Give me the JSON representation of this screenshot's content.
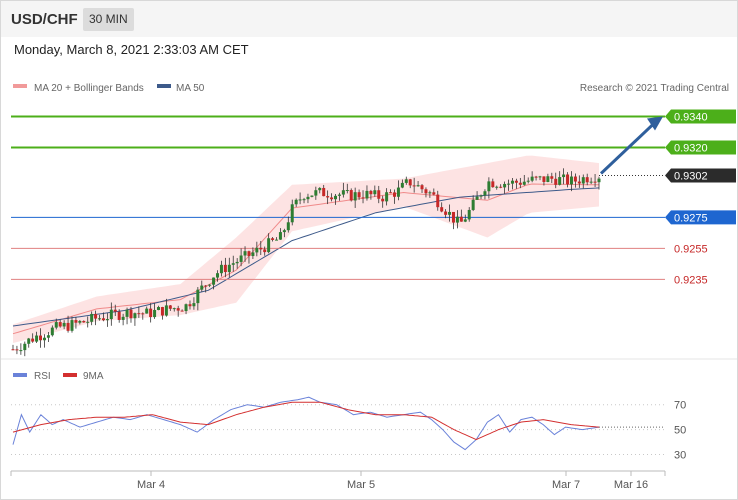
{
  "header": {
    "pair": "USD/CHF",
    "timeframe": "30 MIN"
  },
  "date_line": "Monday, March 8, 2021 2:33:03 AM CET",
  "legend": {
    "ma_bb": "MA 20 + Bollinger Bands",
    "ma50": "MA 50",
    "credit": "Research © 2021 Trading Central"
  },
  "rsi_legend": {
    "rsi": "RSI",
    "ma9": "9MA"
  },
  "colors": {
    "up": "#2e7d32",
    "down": "#c62828",
    "resistance": "#4caf1a",
    "support": "#1e66d0",
    "ma50": "#3d5a8a",
    "band": "#fddede",
    "rsi": "#6a82d9",
    "rsi_ma": "#d32f2f",
    "arrow": "#2f5f9c"
  },
  "chart_data": [
    {
      "type": "candlestick",
      "title": "USD/CHF",
      "timeframe": "30 MIN",
      "x_ticks": [
        "Mar 4",
        "Mar 5",
        "Mar 7",
        "Mar 16"
      ],
      "y_visible_range": [
        0.9185,
        0.935
      ],
      "last_price": 0.9302,
      "levels": [
        {
          "value": 0.934,
          "label": "0.9340",
          "kind": "resistance"
        },
        {
          "value": 0.932,
          "label": "0.9320",
          "kind": "resistance"
        },
        {
          "value": 0.9302,
          "label": "0.9302",
          "kind": "current"
        },
        {
          "value": 0.9275,
          "label": "0.9275",
          "kind": "pivot"
        },
        {
          "value": 0.9255,
          "label": "0.9255",
          "kind": "support"
        },
        {
          "value": 0.9235,
          "label": "0.9235",
          "kind": "support"
        }
      ],
      "close_path": [
        [
          0,
          0.919
        ],
        [
          8,
          0.9198
        ],
        [
          16,
          0.9204
        ],
        [
          22,
          0.9206
        ],
        [
          30,
          0.921
        ],
        [
          36,
          0.9212
        ],
        [
          42,
          0.9214
        ],
        [
          48,
          0.9213
        ],
        [
          56,
          0.9216
        ],
        [
          62,
          0.9218
        ],
        [
          68,
          0.923
        ],
        [
          72,
          0.9238
        ],
        [
          78,
          0.9245
        ],
        [
          84,
          0.925
        ],
        [
          90,
          0.9256
        ],
        [
          96,
          0.9262
        ],
        [
          100,
          0.928
        ],
        [
          104,
          0.929
        ],
        [
          112,
          0.9291
        ],
        [
          120,
          0.9289
        ],
        [
          126,
          0.929
        ],
        [
          132,
          0.9288
        ],
        [
          138,
          0.9292
        ],
        [
          142,
          0.9298
        ],
        [
          150,
          0.929
        ],
        [
          156,
          0.9278
        ],
        [
          160,
          0.927
        ],
        [
          164,
          0.928
        ],
        [
          170,
          0.9298
        ],
        [
          178,
          0.9297
        ],
        [
          186,
          0.9299
        ],
        [
          194,
          0.93
        ],
        [
          200,
          0.9298
        ],
        [
          206,
          0.9301
        ],
        [
          210,
          0.9302
        ]
      ],
      "ma50_path": [
        [
          0,
          0.9205
        ],
        [
          40,
          0.9215
        ],
        [
          70,
          0.9228
        ],
        [
          100,
          0.926
        ],
        [
          130,
          0.9278
        ],
        [
          160,
          0.9288
        ],
        [
          200,
          0.9293
        ],
        [
          210,
          0.9294
        ]
      ],
      "bb_upper": [
        [
          0,
          0.9206
        ],
        [
          30,
          0.9224
        ],
        [
          60,
          0.9232
        ],
        [
          80,
          0.9262
        ],
        [
          100,
          0.9296
        ],
        [
          140,
          0.93
        ],
        [
          170,
          0.931
        ],
        [
          185,
          0.9315
        ],
        [
          210,
          0.931
        ]
      ],
      "bb_lower": [
        [
          0,
          0.9194
        ],
        [
          30,
          0.9208
        ],
        [
          60,
          0.9212
        ],
        [
          80,
          0.922
        ],
        [
          100,
          0.9266
        ],
        [
          140,
          0.9282
        ],
        [
          170,
          0.9262
        ],
        [
          185,
          0.9278
        ],
        [
          210,
          0.9282
        ]
      ],
      "projection": {
        "from": 0.9302,
        "to": 0.934
      }
    },
    {
      "type": "line",
      "title": "RSI",
      "series": [
        {
          "name": "RSI"
        },
        {
          "name": "9MA"
        }
      ],
      "y_ticks": [
        "70",
        "50",
        "30"
      ],
      "ylim": [
        20,
        85
      ],
      "rsi_path": [
        [
          0,
          38
        ],
        [
          3,
          62
        ],
        [
          6,
          48
        ],
        [
          10,
          62
        ],
        [
          14,
          54
        ],
        [
          18,
          58
        ],
        [
          24,
          52
        ],
        [
          30,
          56
        ],
        [
          36,
          60
        ],
        [
          42,
          58
        ],
        [
          48,
          62
        ],
        [
          54,
          58
        ],
        [
          60,
          54
        ],
        [
          66,
          48
        ],
        [
          72,
          58
        ],
        [
          78,
          66
        ],
        [
          84,
          70
        ],
        [
          90,
          68
        ],
        [
          96,
          72
        ],
        [
          102,
          74
        ],
        [
          106,
          76
        ],
        [
          110,
          72
        ],
        [
          116,
          70
        ],
        [
          122,
          62
        ],
        [
          128,
          64
        ],
        [
          134,
          60
        ],
        [
          140,
          62
        ],
        [
          146,
          64
        ],
        [
          150,
          58
        ],
        [
          154,
          50
        ],
        [
          158,
          40
        ],
        [
          162,
          34
        ],
        [
          166,
          42
        ],
        [
          170,
          56
        ],
        [
          174,
          62
        ],
        [
          178,
          48
        ],
        [
          182,
          58
        ],
        [
          186,
          60
        ],
        [
          190,
          54
        ],
        [
          194,
          46
        ],
        [
          198,
          52
        ],
        [
          204,
          50
        ],
        [
          210,
          52
        ]
      ],
      "ma9_path": [
        [
          0,
          48
        ],
        [
          10,
          54
        ],
        [
          20,
          58
        ],
        [
          30,
          60
        ],
        [
          40,
          60
        ],
        [
          50,
          62
        ],
        [
          60,
          56
        ],
        [
          70,
          54
        ],
        [
          80,
          62
        ],
        [
          90,
          68
        ],
        [
          100,
          72
        ],
        [
          110,
          72
        ],
        [
          120,
          66
        ],
        [
          130,
          62
        ],
        [
          140,
          62
        ],
        [
          150,
          60
        ],
        [
          158,
          50
        ],
        [
          166,
          42
        ],
        [
          174,
          50
        ],
        [
          182,
          56
        ],
        [
          190,
          58
        ],
        [
          200,
          54
        ],
        [
          210,
          52
        ]
      ]
    }
  ]
}
